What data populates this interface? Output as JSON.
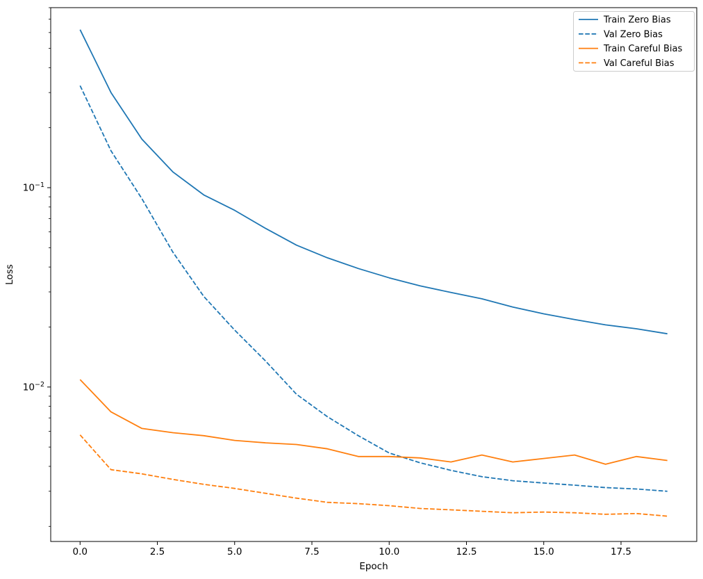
{
  "chart_data": {
    "type": "line",
    "title": "",
    "xlabel": "Epoch",
    "ylabel": "Loss",
    "yscale": "log",
    "grid": false,
    "xlim": [
      -0.95,
      19.95
    ],
    "ylim": [
      0.00168,
      0.8
    ],
    "x": [
      0,
      1,
      2,
      3,
      4,
      5,
      6,
      7,
      8,
      9,
      10,
      11,
      12,
      13,
      14,
      15,
      16,
      17,
      18,
      19
    ],
    "x_ticks": [
      {
        "value": 0,
        "label": "0.0"
      },
      {
        "value": 2.5,
        "label": "2.5"
      },
      {
        "value": 5,
        "label": "5.0"
      },
      {
        "value": 7.5,
        "label": "7.5"
      },
      {
        "value": 10,
        "label": "10.0"
      },
      {
        "value": 12.5,
        "label": "12.5"
      },
      {
        "value": 15,
        "label": "15.0"
      },
      {
        "value": 17.5,
        "label": "17.5"
      }
    ],
    "y_ticks": [
      {
        "value": 0.1,
        "base": "10",
        "exp": "−1"
      },
      {
        "value": 0.01,
        "base": "10",
        "exp": "−2"
      }
    ],
    "series": [
      {
        "name": "Train Zero Bias",
        "color": "#1f77b4",
        "style": "solid",
        "values": [
          0.62,
          0.3,
          0.175,
          0.12,
          0.092,
          0.077,
          0.0625,
          0.0515,
          0.0445,
          0.0393,
          0.0353,
          0.0322,
          0.0298,
          0.0277,
          0.0252,
          0.0233,
          0.0218,
          0.0205,
          0.0196,
          0.0185
        ]
      },
      {
        "name": "Val Zero Bias",
        "color": "#1f77b4",
        "style": "dashed",
        "values": [
          0.325,
          0.153,
          0.088,
          0.0475,
          0.0285,
          0.0193,
          0.0135,
          0.0092,
          0.0071,
          0.0057,
          0.00467,
          0.00417,
          0.00382,
          0.00355,
          0.00339,
          0.0033,
          0.00322,
          0.00313,
          0.00308,
          0.003
        ]
      },
      {
        "name": "Train Careful Bias",
        "color": "#ff7f0e",
        "style": "solid",
        "values": [
          0.0109,
          0.0075,
          0.0062,
          0.0059,
          0.0057,
          0.0054,
          0.00525,
          0.00515,
          0.0049,
          0.00448,
          0.00448,
          0.00441,
          0.00421,
          0.00456,
          0.00421,
          0.00438,
          0.00456,
          0.0041,
          0.00448,
          0.00428
        ]
      },
      {
        "name": "Val Careful Bias",
        "color": "#ff7f0e",
        "style": "dashed",
        "values": [
          0.00575,
          0.00385,
          0.00367,
          0.00344,
          0.00325,
          0.0031,
          0.00293,
          0.00277,
          0.00264,
          0.0026,
          0.00254,
          0.00246,
          0.00242,
          0.00238,
          0.00234,
          0.00236,
          0.00234,
          0.0023,
          0.00232,
          0.00225
        ]
      }
    ],
    "legend": {
      "position": "upper right",
      "items": [
        "Train Zero Bias",
        "Val Zero Bias",
        "Train Careful Bias",
        "Val Careful Bias"
      ]
    }
  }
}
